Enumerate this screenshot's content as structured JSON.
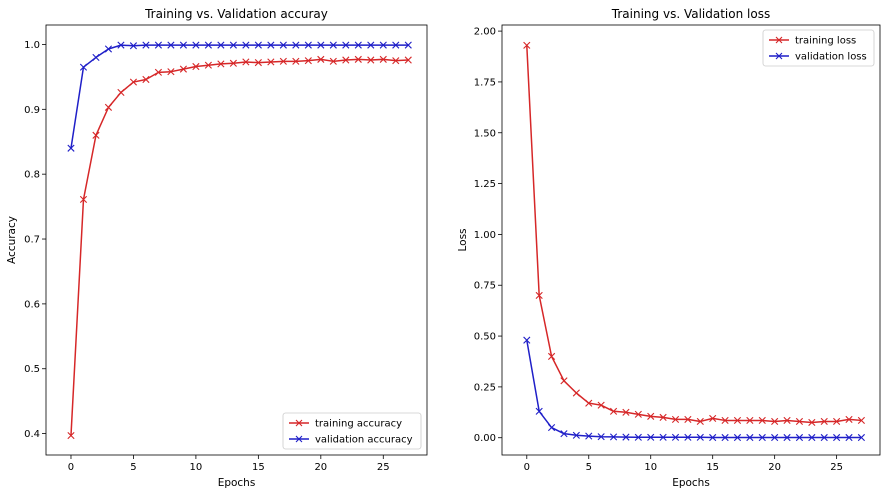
{
  "chart_data": [
    {
      "type": "line",
      "title": "Training vs. Validation accuray",
      "xlabel": "Epochs",
      "ylabel": "Accuracy",
      "xlim": [
        -2,
        28.5
      ],
      "ylim": [
        0.367,
        1.03
      ],
      "xticks": [
        0,
        5,
        10,
        15,
        20,
        25
      ],
      "xtick_labels": [
        "0",
        "5",
        "10",
        "15",
        "20",
        "25"
      ],
      "yticks": [
        0.4,
        0.5,
        0.6,
        0.7,
        0.8,
        0.9,
        1.0
      ],
      "ytick_labels": [
        "0.4",
        "0.5",
        "0.6",
        "0.7",
        "0.8",
        "0.9",
        "1.0"
      ],
      "grid": false,
      "legend_position": "lower-right",
      "marker": "x",
      "x": [
        0,
        1,
        2,
        3,
        4,
        5,
        6,
        7,
        8,
        9,
        10,
        11,
        12,
        13,
        14,
        15,
        16,
        17,
        18,
        19,
        20,
        21,
        22,
        23,
        24,
        25,
        26,
        27
      ],
      "series": [
        {
          "name": "training accuracy",
          "color": "#d62728",
          "values": [
            0.397,
            0.761,
            0.86,
            0.903,
            0.926,
            0.942,
            0.946,
            0.957,
            0.958,
            0.962,
            0.966,
            0.968,
            0.97,
            0.971,
            0.973,
            0.972,
            0.973,
            0.974,
            0.974,
            0.975,
            0.977,
            0.974,
            0.976,
            0.977,
            0.976,
            0.977,
            0.975,
            0.976
          ]
        },
        {
          "name": "validation accuracy",
          "color": "#1f1fc8",
          "values": [
            0.84,
            0.965,
            0.98,
            0.993,
            0.999,
            0.998,
            0.999,
            0.999,
            0.999,
            0.999,
            0.999,
            0.999,
            0.999,
            0.999,
            0.999,
            0.999,
            0.999,
            0.999,
            0.999,
            0.999,
            0.999,
            0.999,
            0.999,
            0.999,
            0.999,
            0.999,
            0.999,
            0.999
          ]
        }
      ]
    },
    {
      "type": "line",
      "title": "Training vs. Validation loss",
      "xlabel": "Epochs",
      "ylabel": "Loss",
      "xlim": [
        -2,
        28.5
      ],
      "ylim": [
        -0.085,
        2.03
      ],
      "xticks": [
        0,
        5,
        10,
        15,
        20,
        25
      ],
      "xtick_labels": [
        "0",
        "5",
        "10",
        "15",
        "20",
        "25"
      ],
      "yticks": [
        0,
        0.25,
        0.5,
        0.75,
        1.0,
        1.25,
        1.5,
        1.75,
        2.0
      ],
      "ytick_labels": [
        "0.00",
        "0.25",
        "0.50",
        "0.75",
        "1.00",
        "1.25",
        "1.50",
        "1.75",
        "2.00"
      ],
      "grid": false,
      "legend_position": "upper-right",
      "marker": "x",
      "x": [
        0,
        1,
        2,
        3,
        4,
        5,
        6,
        7,
        8,
        9,
        10,
        11,
        12,
        13,
        14,
        15,
        16,
        17,
        18,
        19,
        20,
        21,
        22,
        23,
        24,
        25,
        26,
        27
      ],
      "series": [
        {
          "name": "training loss",
          "color": "#d62728",
          "values": [
            1.93,
            0.7,
            0.4,
            0.28,
            0.22,
            0.17,
            0.16,
            0.13,
            0.125,
            0.115,
            0.105,
            0.1,
            0.09,
            0.09,
            0.08,
            0.095,
            0.085,
            0.085,
            0.085,
            0.085,
            0.08,
            0.085,
            0.08,
            0.075,
            0.08,
            0.08,
            0.09,
            0.085
          ]
        },
        {
          "name": "validation loss",
          "color": "#1f1fc8",
          "values": [
            0.48,
            0.13,
            0.05,
            0.02,
            0.012,
            0.008,
            0.005,
            0.004,
            0.003,
            0.002,
            0.002,
            0.002,
            0.002,
            0.002,
            0.002,
            0.001,
            0.001,
            0.001,
            0.001,
            0.001,
            0.001,
            0.001,
            0.001,
            0.001,
            0.001,
            0.001,
            0.001,
            0.001
          ]
        }
      ]
    }
  ]
}
